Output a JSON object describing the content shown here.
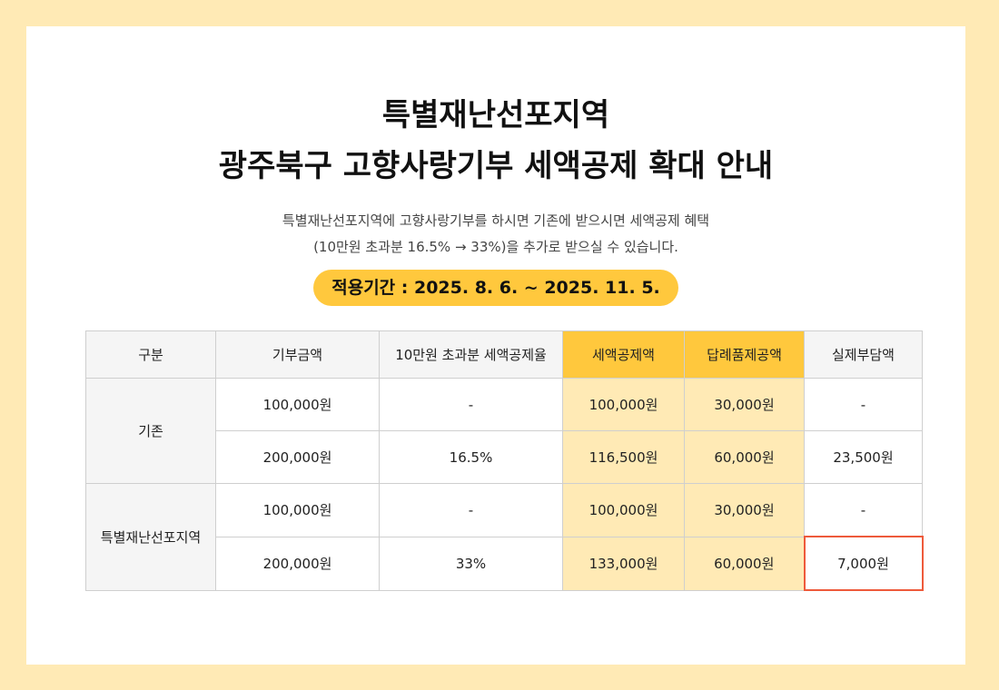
{
  "title": {
    "line1": "특별재난선포지역",
    "line2": "광주북구 고향사랑기부 세액공제 확대 안내"
  },
  "description": {
    "line1": "특별재난선포지역에 고향사랑기부를 하시면 기존에 받으시면 세액공제 혜택",
    "line2": "(10만원 초과분 16.5% → 33%)을 추가로 받으실 수 있습니다."
  },
  "period": "적용기간 : 2025. 8. 6. ~ 2025. 11. 5.",
  "colors": {
    "background": "#ffeab5",
    "accent": "#ffc83d",
    "highlight_cell": "#ffeab5",
    "emphasis_border": "#ee5a3b"
  },
  "table": {
    "headers": [
      "구분",
      "기부금액",
      "10만원 초과분 세액공제율",
      "세액공제액",
      "답례품제공액",
      "실제부담액"
    ],
    "groups": [
      {
        "category": "기존",
        "rows": [
          [
            "100,000원",
            "-",
            "100,000원",
            "30,000원",
            "-"
          ],
          [
            "200,000원",
            "16.5%",
            "116,500원",
            "60,000원",
            "23,500원"
          ]
        ]
      },
      {
        "category": "특별재난선포지역",
        "rows": [
          [
            "100,000원",
            "-",
            "100,000원",
            "30,000원",
            "-"
          ],
          [
            "200,000원",
            "33%",
            "133,000원",
            "60,000원",
            "7,000원"
          ]
        ]
      }
    ]
  }
}
